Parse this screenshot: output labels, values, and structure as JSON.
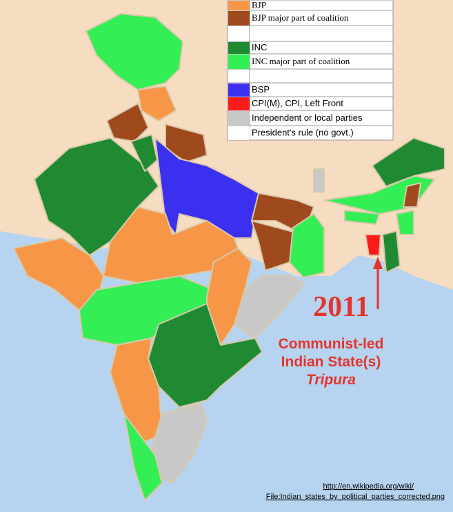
{
  "legend": {
    "items": [
      {
        "label": "BJP"
      },
      {
        "label": "BJP  major part of coalition"
      },
      {
        "label": "INC"
      },
      {
        "label": "INC  major part of coalition"
      },
      {
        "label": "BSP"
      },
      {
        "label": "CPI(M), CPI, Left Front"
      },
      {
        "label": "Independent or local parties"
      },
      {
        "label": "President's rule (no govt.)"
      }
    ]
  },
  "annotation": {
    "year": "2011",
    "lines": [
      "Communist-led",
      "Indian State(s)"
    ],
    "state": "Tripura"
  },
  "source": {
    "lines": [
      "http://en.wikipedia.org/wiki/",
      "File:Indian_states_by_political_parties_corrected.png"
    ]
  }
}
